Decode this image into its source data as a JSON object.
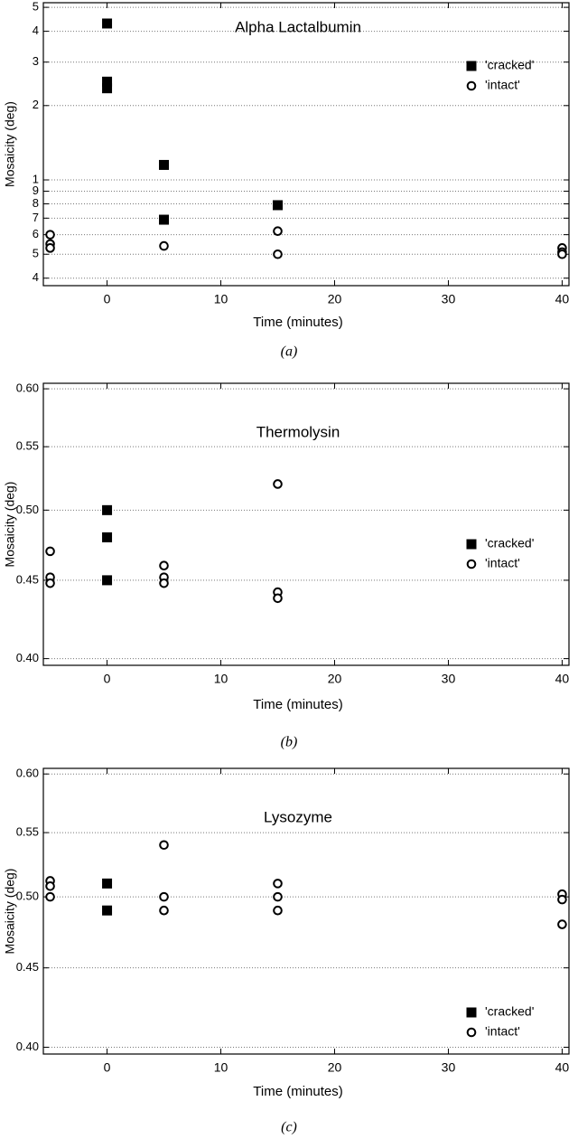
{
  "chart_data": [
    {
      "type": "scatter",
      "title": "Alpha Lactalbumin",
      "xlabel": "Time (minutes)",
      "ylabel": "Mosaicity (deg)",
      "caption": "(a)",
      "log_y": true,
      "grid": true,
      "legend": "upper right",
      "xlim": [
        -5.6,
        40.6
      ],
      "xticks": [
        0,
        10,
        20,
        30,
        40
      ],
      "ylim": [
        0.373,
        5.22
      ],
      "yticks": [
        {
          "value": 0.4,
          "label": "4"
        },
        {
          "value": 0.5,
          "label": "5"
        },
        {
          "value": 0.6,
          "label": "6"
        },
        {
          "value": 0.7,
          "label": "7"
        },
        {
          "value": 0.8,
          "label": "8"
        },
        {
          "value": 0.9,
          "label": "9"
        },
        1,
        2,
        3,
        4,
        5
      ],
      "series": [
        {
          "name": "'cracked'",
          "color": "#000000",
          "marker": "square",
          "x": [
            0,
            0,
            0,
            5,
            5,
            15
          ],
          "values": [
            4.3,
            2.5,
            2.35,
            1.15,
            0.69,
            0.79
          ]
        },
        {
          "name": "'intact'",
          "color": "#000000",
          "marker": "circle",
          "x": [
            -5,
            -5,
            -5,
            5,
            15,
            15,
            40,
            40,
            40
          ],
          "values": [
            0.6,
            0.55,
            0.53,
            0.54,
            0.62,
            0.5,
            0.53,
            0.51,
            0.5
          ]
        }
      ]
    },
    {
      "type": "scatter",
      "title": "Thermolysin",
      "xlabel": "Time (minutes)",
      "ylabel": "Mosaicity (deg)",
      "caption": "(b)",
      "log_y": true,
      "grid": true,
      "legend": "right",
      "xlim": [
        -5.6,
        40.6
      ],
      "xticks": [
        0,
        10,
        20,
        30,
        40
      ],
      "ylim": [
        0.396,
        0.605
      ],
      "yticks": [
        {
          "value": 0.4,
          "label": "0.40"
        },
        0.45,
        {
          "value": 0.5,
          "label": "0.50"
        },
        0.55,
        {
          "value": 0.6,
          "label": "0.60"
        }
      ],
      "series": [
        {
          "name": "'cracked'",
          "color": "#000000",
          "marker": "square",
          "x": [
            0,
            0,
            0
          ],
          "values": [
            0.5,
            0.48,
            0.45
          ]
        },
        {
          "name": "'intact'",
          "color": "#000000",
          "marker": "circle",
          "x": [
            -5,
            -5,
            -5,
            5,
            5,
            5,
            15,
            15,
            15
          ],
          "values": [
            0.47,
            0.452,
            0.448,
            0.46,
            0.452,
            0.448,
            0.52,
            0.442,
            0.438
          ]
        }
      ]
    },
    {
      "type": "scatter",
      "title": "Lysozyme",
      "xlabel": "Time (minutes)",
      "ylabel": "Mosaicity (deg)",
      "caption": "(c)",
      "log_y": true,
      "grid": true,
      "legend": "lower right",
      "xlim": [
        -5.6,
        40.6
      ],
      "xticks": [
        0,
        10,
        20,
        30,
        40
      ],
      "ylim": [
        0.396,
        0.605
      ],
      "yticks": [
        {
          "value": 0.4,
          "label": "0.40"
        },
        0.45,
        {
          "value": 0.5,
          "label": "0.50"
        },
        0.55,
        {
          "value": 0.6,
          "label": "0.60"
        }
      ],
      "series": [
        {
          "name": "'cracked'",
          "color": "#000000",
          "marker": "square",
          "x": [
            0,
            0
          ],
          "values": [
            0.51,
            0.49
          ]
        },
        {
          "name": "'intact'",
          "color": "#000000",
          "marker": "circle",
          "x": [
            -5,
            -5,
            -5,
            5,
            5,
            5,
            15,
            15,
            15,
            40,
            40,
            40
          ],
          "values": [
            0.512,
            0.508,
            0.5,
            0.54,
            0.5,
            0.49,
            0.51,
            0.5,
            0.49,
            0.502,
            0.498,
            0.48
          ]
        }
      ]
    }
  ]
}
